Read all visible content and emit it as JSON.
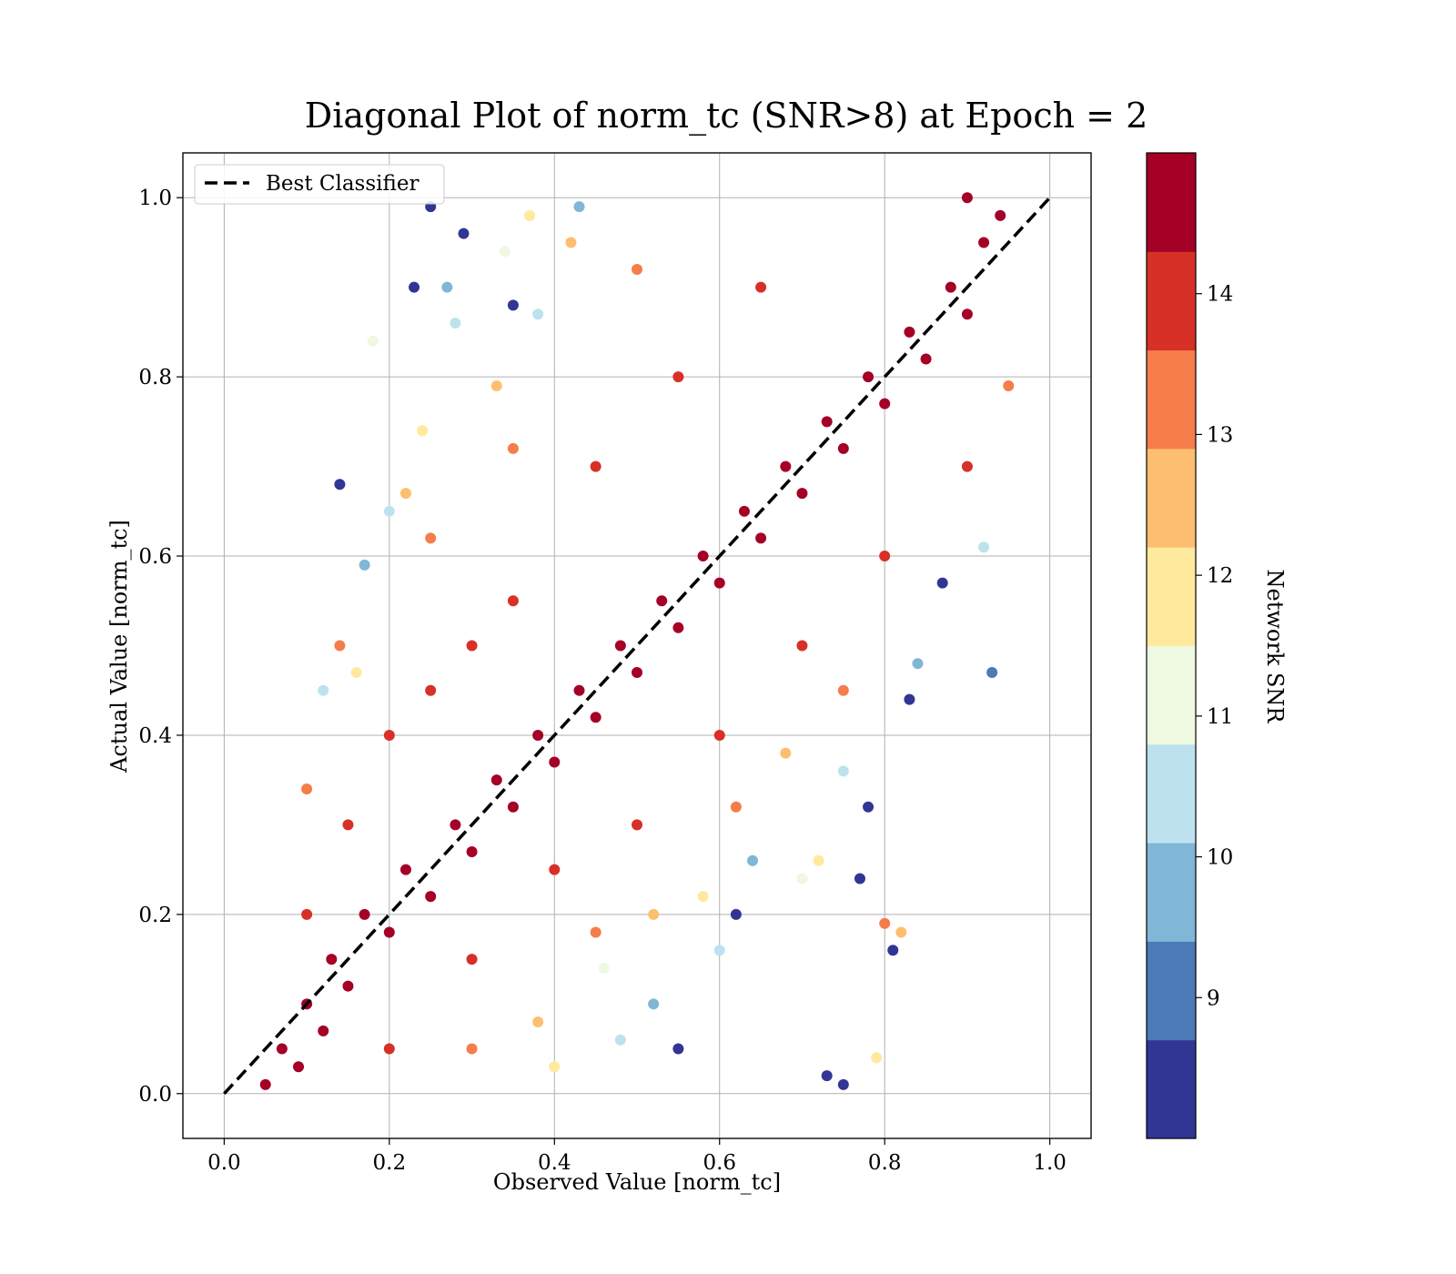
{
  "chart_data": {
    "type": "scatter",
    "title": "Diagonal Plot of norm_tc (SNR>8) at Epoch = 2",
    "xlabel": "Observed Value [norm_tc]",
    "ylabel": "Actual Value [norm_tc]",
    "xlim": [
      -0.05,
      1.05
    ],
    "ylim": [
      -0.05,
      1.05
    ],
    "xticks": [
      "0.0",
      "0.2",
      "0.4",
      "0.6",
      "0.8",
      "1.0"
    ],
    "yticks": [
      "0.0",
      "0.2",
      "0.4",
      "0.6",
      "0.8",
      "1.0"
    ],
    "grid": true,
    "legend": {
      "placement": "top-left",
      "entries": [
        {
          "label": "Best Classifier",
          "style": "dashed-black-line"
        }
      ]
    },
    "reference_line": {
      "label": "Best Classifier",
      "x": [
        0.0,
        1.0
      ],
      "y": [
        0.0,
        1.0
      ]
    },
    "colorbar": {
      "label": "Network SNR",
      "ticks": [
        "9",
        "10",
        "11",
        "12",
        "13",
        "14"
      ],
      "tick_values": [
        9,
        10,
        11,
        12,
        13,
        14
      ],
      "range": [
        8.0,
        15.0
      ],
      "colors": [
        "#313695",
        "#4a7ab7",
        "#80b6d6",
        "#bde2ee",
        "#eff8e0",
        "#fee99d",
        "#fdbf6f",
        "#f57d4a",
        "#d73027",
        "#a50026"
      ]
    },
    "series": [
      {
        "encoding": "colored by Network SNR",
        "points": [
          [
            0.05,
            0.01,
            14.5
          ],
          [
            0.07,
            0.05,
            14.5
          ],
          [
            0.09,
            0.03,
            14.5
          ],
          [
            0.1,
            0.1,
            14.5
          ],
          [
            0.12,
            0.07,
            14.5
          ],
          [
            0.13,
            0.15,
            14.5
          ],
          [
            0.15,
            0.12,
            14.5
          ],
          [
            0.17,
            0.2,
            14.5
          ],
          [
            0.2,
            0.18,
            14.5
          ],
          [
            0.22,
            0.25,
            14.5
          ],
          [
            0.25,
            0.22,
            14.5
          ],
          [
            0.28,
            0.3,
            14.5
          ],
          [
            0.3,
            0.27,
            14.5
          ],
          [
            0.33,
            0.35,
            14.5
          ],
          [
            0.35,
            0.32,
            14.5
          ],
          [
            0.38,
            0.4,
            14.5
          ],
          [
            0.4,
            0.37,
            14.5
          ],
          [
            0.43,
            0.45,
            14.5
          ],
          [
            0.45,
            0.42,
            14.5
          ],
          [
            0.48,
            0.5,
            14.5
          ],
          [
            0.5,
            0.47,
            14.5
          ],
          [
            0.53,
            0.55,
            14.5
          ],
          [
            0.55,
            0.52,
            14.5
          ],
          [
            0.58,
            0.6,
            14.5
          ],
          [
            0.6,
            0.57,
            14.5
          ],
          [
            0.63,
            0.65,
            14.5
          ],
          [
            0.65,
            0.62,
            14.5
          ],
          [
            0.68,
            0.7,
            14.5
          ],
          [
            0.7,
            0.67,
            14.5
          ],
          [
            0.73,
            0.75,
            14.5
          ],
          [
            0.75,
            0.72,
            14.5
          ],
          [
            0.78,
            0.8,
            14.5
          ],
          [
            0.8,
            0.77,
            14.5
          ],
          [
            0.83,
            0.85,
            14.5
          ],
          [
            0.85,
            0.82,
            14.5
          ],
          [
            0.88,
            0.9,
            14.5
          ],
          [
            0.9,
            0.87,
            14.5
          ],
          [
            0.92,
            0.95,
            14.5
          ],
          [
            0.94,
            0.98,
            14.5
          ],
          [
            0.9,
            1.0,
            14.5
          ],
          [
            0.1,
            0.2,
            13.8
          ],
          [
            0.15,
            0.3,
            13.8
          ],
          [
            0.2,
            0.4,
            13.8
          ],
          [
            0.25,
            0.45,
            13.8
          ],
          [
            0.3,
            0.5,
            13.8
          ],
          [
            0.35,
            0.55,
            13.8
          ],
          [
            0.45,
            0.7,
            13.8
          ],
          [
            0.55,
            0.8,
            13.8
          ],
          [
            0.65,
            0.9,
            13.8
          ],
          [
            0.2,
            0.05,
            13.8
          ],
          [
            0.3,
            0.15,
            13.8
          ],
          [
            0.4,
            0.25,
            13.8
          ],
          [
            0.5,
            0.3,
            13.8
          ],
          [
            0.6,
            0.4,
            13.8
          ],
          [
            0.7,
            0.5,
            13.8
          ],
          [
            0.8,
            0.6,
            13.8
          ],
          [
            0.9,
            0.7,
            13.8
          ],
          [
            0.1,
            0.34,
            13.2
          ],
          [
            0.14,
            0.5,
            13.2
          ],
          [
            0.25,
            0.62,
            13.2
          ],
          [
            0.35,
            0.72,
            13.2
          ],
          [
            0.5,
            0.92,
            13.2
          ],
          [
            0.3,
            0.05,
            13.2
          ],
          [
            0.45,
            0.18,
            13.2
          ],
          [
            0.62,
            0.32,
            13.2
          ],
          [
            0.75,
            0.45,
            13.2
          ],
          [
            0.95,
            0.79,
            13.2
          ],
          [
            0.8,
            0.19,
            13.2
          ],
          [
            0.22,
            0.67,
            12.4
          ],
          [
            0.33,
            0.79,
            12.4
          ],
          [
            0.42,
            0.95,
            12.4
          ],
          [
            0.38,
            0.08,
            12.4
          ],
          [
            0.52,
            0.2,
            12.4
          ],
          [
            0.68,
            0.38,
            12.4
          ],
          [
            0.82,
            0.18,
            12.4
          ],
          [
            0.16,
            0.47,
            11.7
          ],
          [
            0.24,
            0.74,
            11.7
          ],
          [
            0.37,
            0.98,
            11.7
          ],
          [
            0.4,
            0.03,
            11.7
          ],
          [
            0.58,
            0.22,
            11.7
          ],
          [
            0.72,
            0.26,
            11.7
          ],
          [
            0.79,
            0.04,
            11.7
          ],
          [
            0.18,
            0.84,
            11.2
          ],
          [
            0.34,
            0.94,
            11.2
          ],
          [
            0.46,
            0.14,
            11.2
          ],
          [
            0.7,
            0.24,
            11.2
          ],
          [
            0.12,
            0.45,
            10.4
          ],
          [
            0.2,
            0.65,
            10.4
          ],
          [
            0.28,
            0.86,
            10.4
          ],
          [
            0.38,
            0.87,
            10.4
          ],
          [
            0.48,
            0.06,
            10.4
          ],
          [
            0.6,
            0.16,
            10.4
          ],
          [
            0.75,
            0.36,
            10.4
          ],
          [
            0.92,
            0.61,
            10.4
          ],
          [
            0.17,
            0.59,
            9.6
          ],
          [
            0.27,
            0.9,
            9.6
          ],
          [
            0.43,
            0.99,
            9.6
          ],
          [
            0.52,
            0.1,
            9.6
          ],
          [
            0.64,
            0.26,
            9.6
          ],
          [
            0.84,
            0.48,
            9.6
          ],
          [
            0.93,
            0.47,
            9.3
          ],
          [
            0.14,
            0.68,
            8.4
          ],
          [
            0.23,
            0.9,
            8.4
          ],
          [
            0.29,
            0.96,
            8.4
          ],
          [
            0.35,
            0.88,
            8.4
          ],
          [
            0.25,
            0.99,
            8.4
          ],
          [
            0.55,
            0.05,
            8.4
          ],
          [
            0.62,
            0.2,
            8.4
          ],
          [
            0.78,
            0.32,
            8.4
          ],
          [
            0.81,
            0.16,
            8.4
          ],
          [
            0.73,
            0.02,
            8.4
          ],
          [
            0.75,
            0.01,
            8.4
          ],
          [
            0.77,
            0.24,
            8.4
          ],
          [
            0.87,
            0.57,
            8.4
          ],
          [
            0.83,
            0.44,
            8.4
          ]
        ]
      }
    ]
  }
}
